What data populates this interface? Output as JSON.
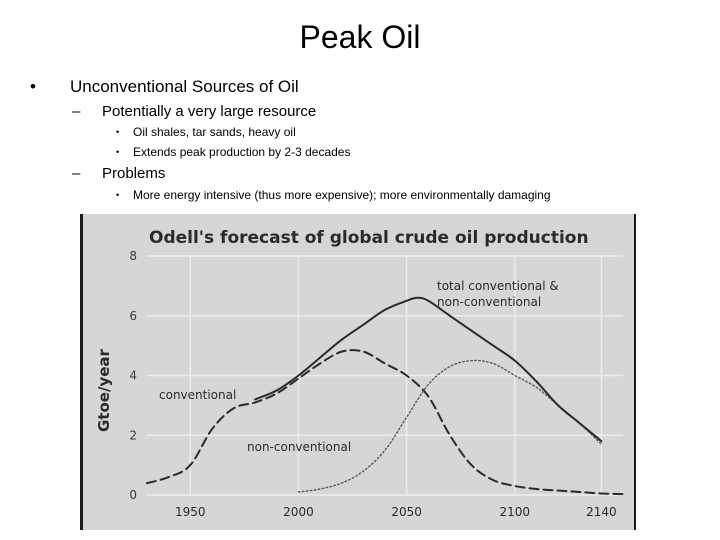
{
  "slide": {
    "title": "Peak Oil",
    "bullet_glyph": "•",
    "dash_glyph": "–",
    "sub_bullet_glyph": "•",
    "heading": "Unconventional Sources of Oil",
    "points": [
      {
        "text": "Potentially a very large resource",
        "subpoints": [
          "Oil shales, tar sands, heavy oil",
          "Extends peak production by 2-3 decades"
        ]
      },
      {
        "text": "Problems",
        "subpoints": [
          "More energy intensive (thus more expensive); more environmentally damaging"
        ]
      }
    ]
  },
  "chart_data": {
    "type": "line",
    "title": "Odell's forecast of global crude oil production",
    "ylabel": "Gtoe/year",
    "xlabel": "",
    "xlim": [
      1930,
      2150
    ],
    "ylim": [
      0,
      8
    ],
    "x_ticks": [
      1950,
      2000,
      2050,
      2100,
      2140
    ],
    "y_ticks": [
      0,
      2,
      4,
      6,
      8
    ],
    "grid": true,
    "series": [
      {
        "name": "conventional",
        "style": "dashed",
        "x": [
          1930,
          1940,
          1950,
          1960,
          1970,
          1980,
          1990,
          2000,
          2010,
          2020,
          2030,
          2040,
          2050,
          2060,
          2070,
          2080,
          2090,
          2100,
          2110,
          2120,
          2130,
          2140,
          2150
        ],
        "y": [
          0.4,
          0.6,
          1.0,
          2.2,
          2.9,
          3.1,
          3.4,
          3.9,
          4.4,
          4.8,
          4.8,
          4.4,
          4.0,
          3.3,
          2.0,
          1.0,
          0.5,
          0.3,
          0.2,
          0.15,
          0.1,
          0.05,
          0.03
        ]
      },
      {
        "name": "non-conventional",
        "style": "dotted",
        "x": [
          2000,
          2010,
          2020,
          2030,
          2040,
          2050,
          2060,
          2070,
          2080,
          2090,
          2100,
          2110,
          2120,
          2130,
          2140
        ],
        "y": [
          0.1,
          0.2,
          0.4,
          0.8,
          1.5,
          2.6,
          3.7,
          4.3,
          4.5,
          4.4,
          4.0,
          3.6,
          3.0,
          2.4,
          1.7
        ]
      },
      {
        "name": "total conventional & non-conventional",
        "style": "solid",
        "x": [
          1980,
          1990,
          2000,
          2010,
          2020,
          2030,
          2040,
          2050,
          2055,
          2060,
          2070,
          2080,
          2090,
          2100,
          2110,
          2120,
          2130,
          2140
        ],
        "y": [
          3.2,
          3.5,
          4.0,
          4.6,
          5.2,
          5.7,
          6.2,
          6.5,
          6.6,
          6.5,
          6.0,
          5.5,
          5.0,
          4.5,
          3.8,
          3.0,
          2.4,
          1.8
        ]
      }
    ],
    "annotations": {
      "conventional": "conventional",
      "non_conventional": "non-conventional",
      "total_line1": "total conventional &",
      "total_line2": "non-conventional"
    },
    "colors": {
      "background": "#d6d6d6",
      "line": "#2a2a2a",
      "dotted": "#555555",
      "grid": "#ededed"
    }
  }
}
